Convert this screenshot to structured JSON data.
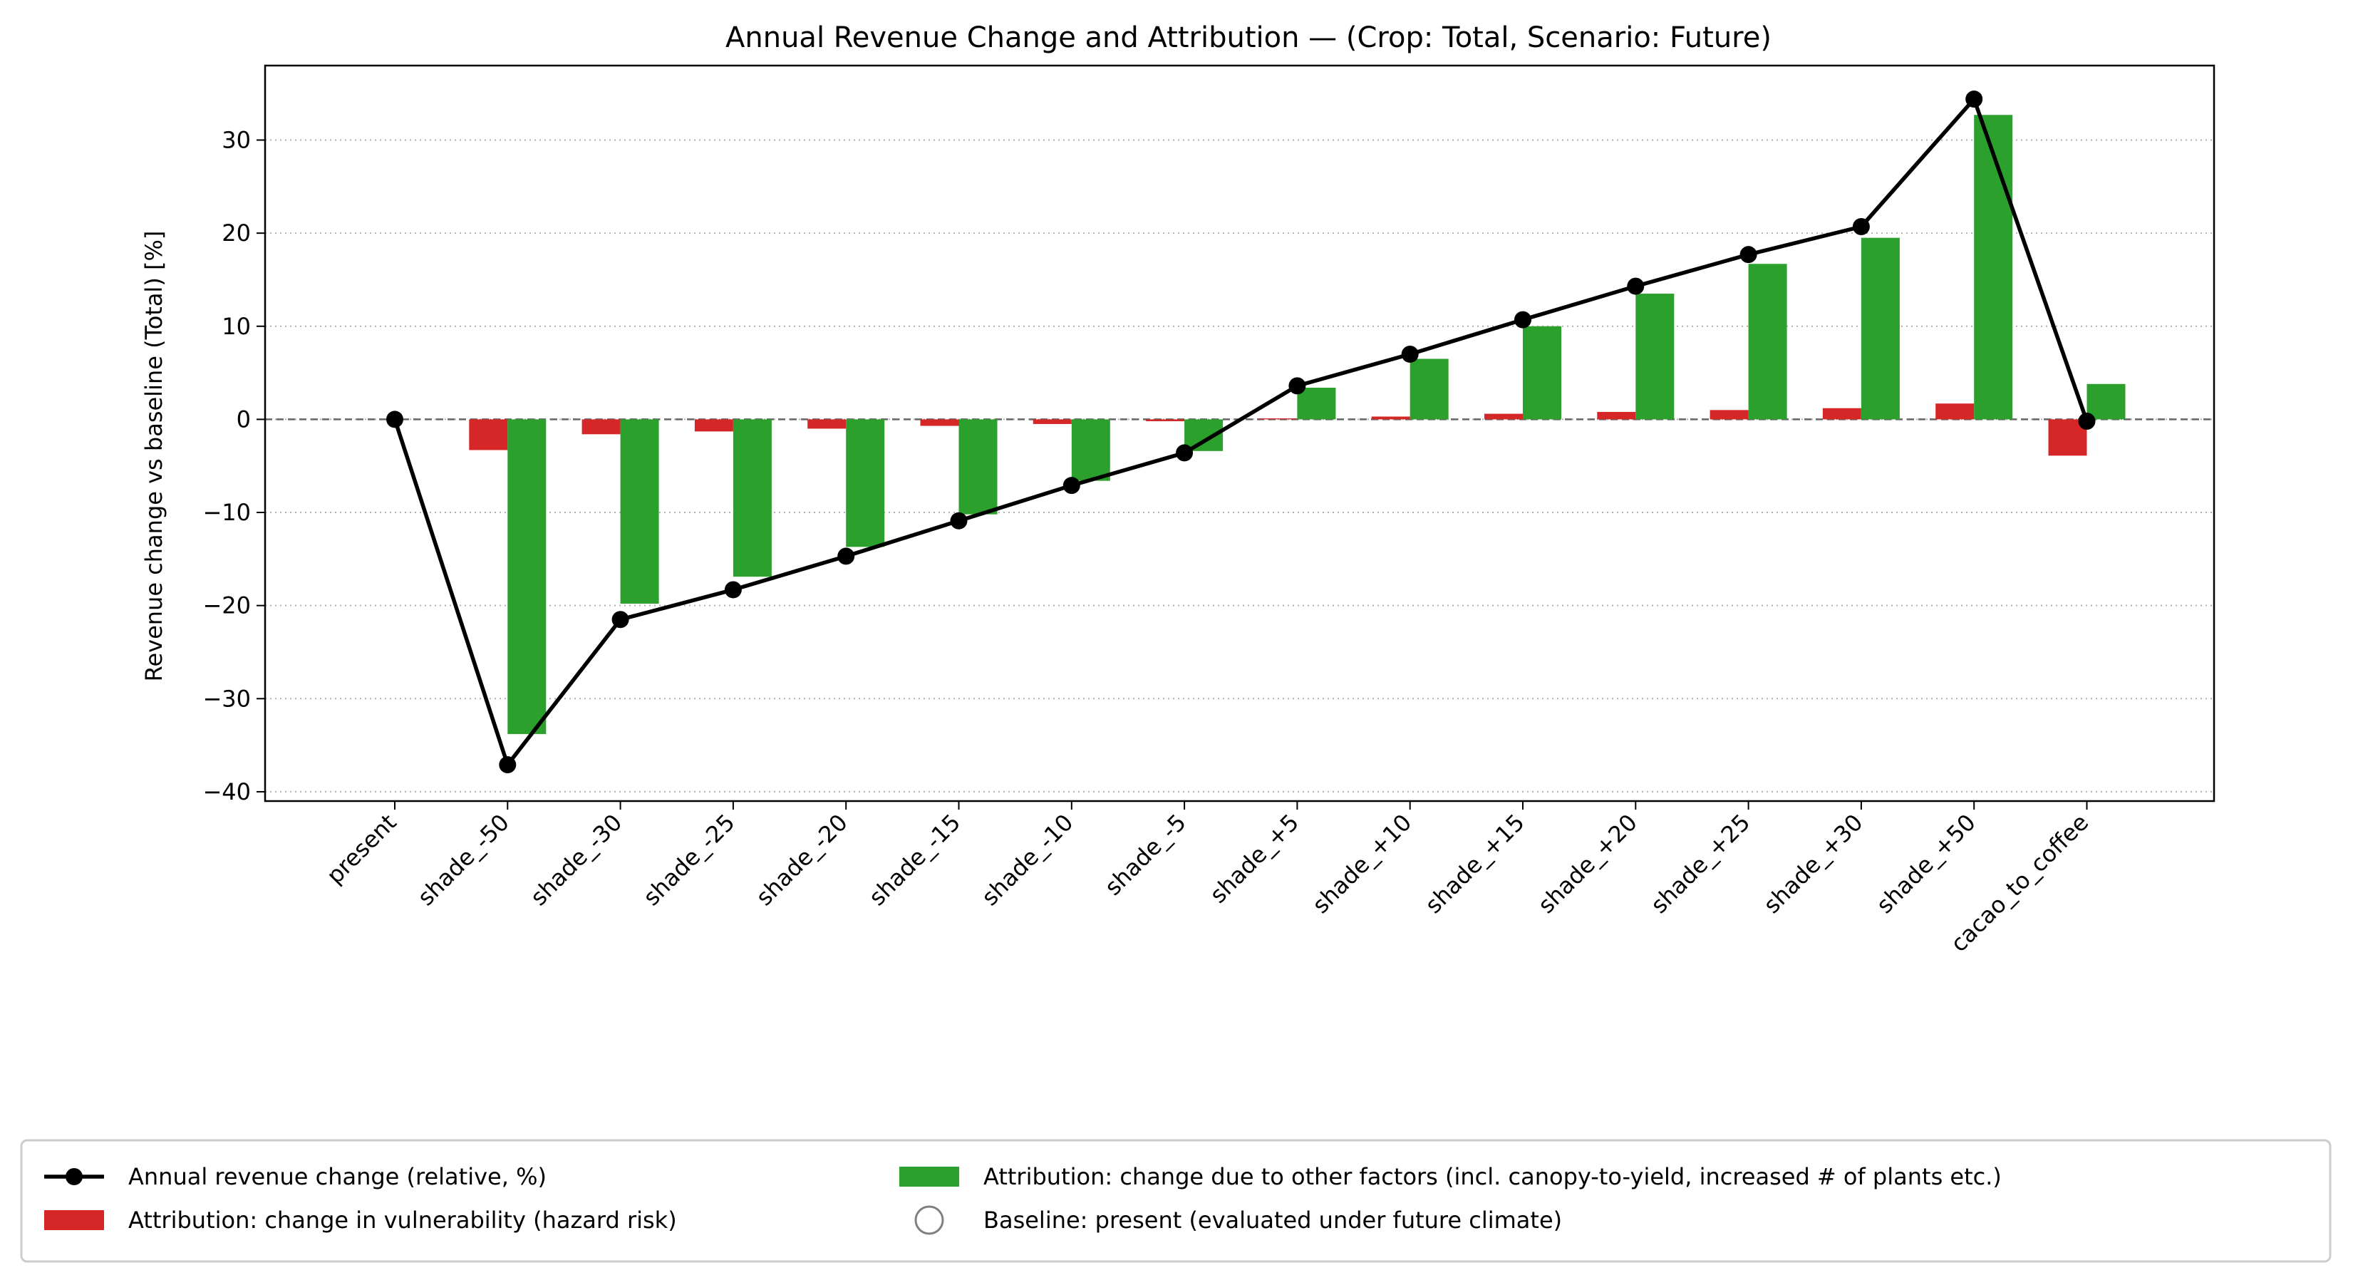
{
  "chart_data": {
    "type": "bar",
    "title": "Annual Revenue Change and Attribution — (Crop: Total, Scenario: Future)",
    "xlabel": "",
    "ylabel": "Revenue change vs baseline (Total) [%]",
    "ylim": [
      -41,
      38
    ],
    "yticks": [
      -40,
      -30,
      -20,
      -10,
      0,
      10,
      20,
      30
    ],
    "ytick_labels": [
      "−40",
      "−30",
      "−20",
      "−10",
      "0",
      "10",
      "20",
      "30"
    ],
    "grid": "horizontal dotted",
    "legend_placement": "bottom",
    "categories": [
      "present",
      "shade_-50",
      "shade_-30",
      "shade_-25",
      "shade_-20",
      "shade_-15",
      "shade_-10",
      "shade_-5",
      "shade_+5",
      "shade_+10",
      "shade_+15",
      "shade_+20",
      "shade_+25",
      "shade_+30",
      "shade_+50",
      "cacao_to_coffee"
    ],
    "series": [
      {
        "name": "Annual revenue change (relative, %)",
        "kind": "line",
        "color": "#000000",
        "values": [
          0,
          -37.1,
          -21.5,
          -18.3,
          -14.7,
          -10.9,
          -7.1,
          -3.6,
          3.6,
          7.0,
          10.7,
          14.3,
          17.7,
          20.7,
          34.4,
          -0.2
        ]
      },
      {
        "name": "Attribution: change in vulnerability (hazard risk)",
        "kind": "bar",
        "color": "#d62728",
        "values": [
          null,
          -3.3,
          -1.6,
          -1.3,
          -1.0,
          -0.7,
          -0.5,
          -0.2,
          0.1,
          0.3,
          0.6,
          0.8,
          1.0,
          1.2,
          1.7,
          -3.9
        ]
      },
      {
        "name": "Attribution: change due to other factors (incl. canopy-to-yield, increased # of plants etc.)",
        "kind": "bar",
        "color": "#2ca02c",
        "values": [
          null,
          -33.8,
          -19.8,
          -16.9,
          -13.7,
          -10.2,
          -6.6,
          -3.4,
          3.4,
          6.5,
          10.0,
          13.5,
          16.7,
          19.5,
          32.7,
          3.8
        ]
      },
      {
        "name": "Baseline: present (evaluated under future climate)",
        "kind": "marker",
        "color": "#808080"
      }
    ]
  }
}
